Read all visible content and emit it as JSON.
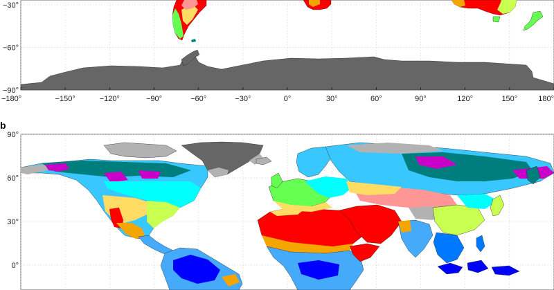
{
  "panels": [
    {
      "label": "",
      "lat_ticks": [
        {
          "lat": -30,
          "text": "−30°"
        },
        {
          "lat": -60,
          "text": "−60°"
        },
        {
          "lat": -90,
          "text": "−90°"
        }
      ],
      "lon_ticks": [
        {
          "lon": -180,
          "text": "−180°"
        },
        {
          "lon": -150,
          "text": "−150°"
        },
        {
          "lon": -120,
          "text": "−120°"
        },
        {
          "lon": -90,
          "text": "−90°"
        },
        {
          "lon": -60,
          "text": "−60°"
        },
        {
          "lon": -30,
          "text": "−30°"
        },
        {
          "lon": 0,
          "text": "0°"
        },
        {
          "lon": 30,
          "text": "30°"
        },
        {
          "lon": 60,
          "text": "60°"
        },
        {
          "lon": 90,
          "text": "90°"
        },
        {
          "lon": 120,
          "text": "120°"
        },
        {
          "lon": 150,
          "text": "150°"
        },
        {
          "lon": 180,
          "text": "180°"
        }
      ]
    },
    {
      "label": "b",
      "lat_ticks": [
        {
          "lat": 90,
          "text": "90°"
        },
        {
          "lat": 60,
          "text": "60°"
        },
        {
          "lat": 30,
          "text": "30°"
        },
        {
          "lat": 0,
          "text": "0°"
        }
      ]
    }
  ],
  "colors": {
    "tropical_rainforest": "#0000fe",
    "tropical_monsoon": "#0078ff",
    "tropical_savanna": "#46aafa",
    "hot_desert": "#ff0000",
    "hot_steppe": "#f5a500",
    "cold_desert": "#ff9696",
    "cold_steppe": "#ffdc64",
    "humid_subtropical": "#c8ff50",
    "oceanic": "#64ff50",
    "humid_continental": "#00ffff",
    "subarctic": "#38c7ff",
    "extreme_subarctic": "#007d7d",
    "dry_summer_continental": "#c800c8",
    "tundra": "#b2b2b2",
    "ice_cap": "#666666"
  }
}
